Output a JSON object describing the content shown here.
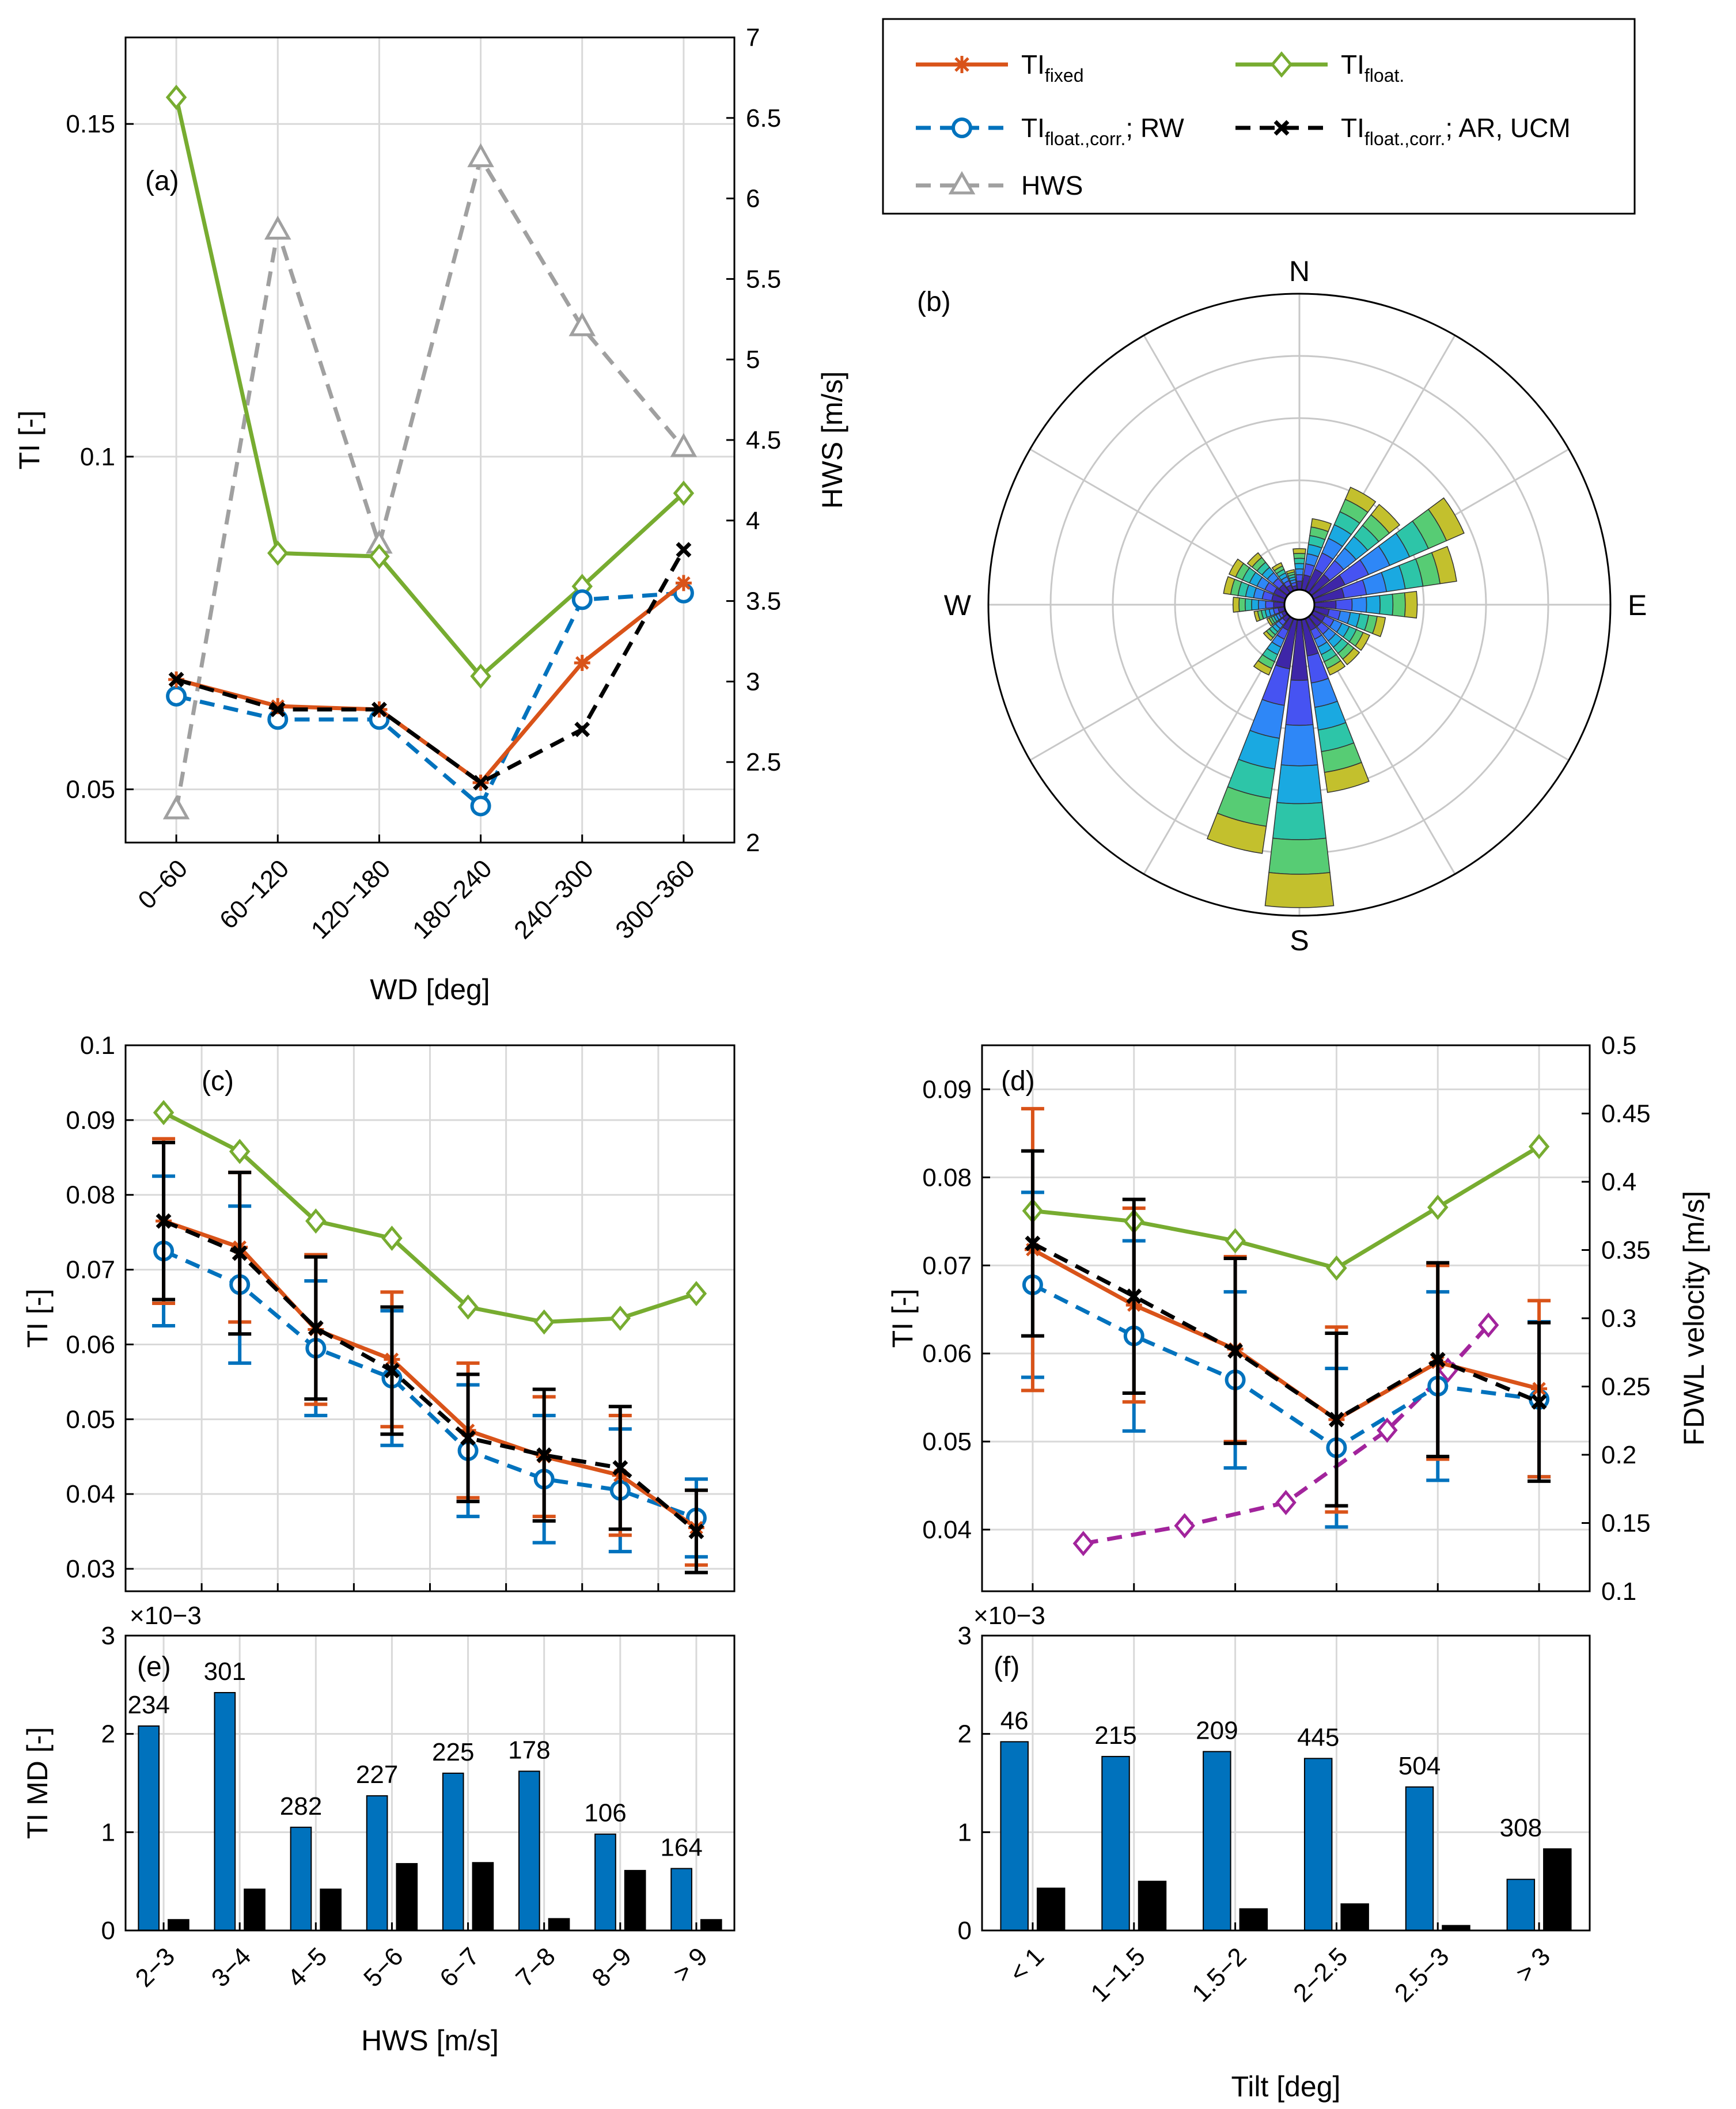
{
  "colors": {
    "ti_fixed": "#d95319",
    "ti_float": "#77ac30",
    "ti_corr_rw": "#0072bd",
    "ti_corr_ar": "#000000",
    "hws": "#a0a0a0",
    "fdwl": "#a2249c",
    "bar_blue": "#0072bd",
    "bar_black": "#000000"
  },
  "legend": {
    "fixed_main": "TI",
    "fixed_sub": "fixed",
    "float_main": "TI",
    "float_sub": "float.",
    "rw_main": "TI",
    "rw_sub": "float.,corr.",
    "rw_suffix": ";  RW",
    "ar_main": "TI",
    "ar_sub": "float.,corr.",
    "ar_suffix": ";  AR, UCM",
    "hws": "HWS"
  },
  "chart_data": [
    {
      "id": "a",
      "panel_label": "(a)",
      "type": "line",
      "categories": [
        "0−60",
        "60−120",
        "120−180",
        "180−240",
        "240−300",
        "300−360"
      ],
      "xlabel": "WD [deg]",
      "ylabel": "TI [-]",
      "ylabel_right": "HWS [m/s]",
      "ylim": [
        0.042,
        0.163
      ],
      "ylim_right": [
        2,
        7
      ],
      "yticks": [
        "0.05",
        "0.1",
        "0.15"
      ],
      "yticks_right": [
        "2",
        "2.5",
        "3",
        "3.5",
        "4",
        "4.5",
        "5",
        "5.5",
        "6",
        "6.5",
        "7"
      ],
      "series": [
        {
          "name": "TI fixed",
          "values": [
            0.0665,
            0.0625,
            0.062,
            0.051,
            0.069,
            0.081
          ]
        },
        {
          "name": "TI float.",
          "values": [
            0.154,
            0.0855,
            0.085,
            0.067,
            0.0805,
            0.0945
          ]
        },
        {
          "name": "TI float.,corr.; RW",
          "values": [
            0.064,
            0.0605,
            0.0605,
            0.0475,
            0.0785,
            0.0795
          ]
        },
        {
          "name": "TI float.,corr.; AR, UCM",
          "values": [
            0.0665,
            0.062,
            0.062,
            0.051,
            0.059,
            0.086
          ]
        },
        {
          "name": "HWS",
          "axis": "right",
          "values": [
            2.2,
            5.8,
            3.85,
            6.25,
            5.2,
            4.45
          ]
        }
      ]
    },
    {
      "id": "b",
      "panel_label": "(b)",
      "type": "polar-rose",
      "directions": [
        "N",
        "E",
        "S",
        "W"
      ],
      "note": "Wind rose of wind direction, stacked by HWS bins",
      "sectors_deg": [
        0,
        15,
        30,
        45,
        60,
        75,
        90,
        105,
        120,
        135,
        150,
        165,
        180,
        195,
        210,
        225,
        240,
        255,
        270,
        285,
        300,
        315,
        330,
        345
      ],
      "frequency": [
        0.2,
        0.35,
        0.55,
        0.55,
        0.8,
        0.7,
        0.5,
        0.35,
        0.3,
        0.3,
        0.3,
        0.85,
        1.4,
        1.15,
        0.3,
        0.15,
        0.1,
        0.15,
        0.25,
        0.3,
        0.3,
        0.25,
        0.15,
        0.1
      ]
    },
    {
      "id": "c",
      "panel_label": "(c)",
      "type": "line",
      "x": [
        2.5,
        3.5,
        4.5,
        5.5,
        6.5,
        7.5,
        8.5,
        9.5
      ],
      "ylabel": "TI [-]",
      "ylim": [
        0.027,
        0.1
      ],
      "yticks": [
        "0.03",
        "0.04",
        "0.05",
        "0.06",
        "0.07",
        "0.08",
        "0.09",
        "0.1"
      ],
      "series": [
        {
          "name": "TI fixed",
          "values": [
            0.0765,
            0.073,
            0.062,
            0.058,
            0.0485,
            0.045,
            0.0425,
            0.0355
          ],
          "err": [
            0.011,
            0.01,
            0.01,
            0.009,
            0.009,
            0.008,
            0.008,
            0.005
          ]
        },
        {
          "name": "TI float.",
          "values": [
            0.091,
            0.0858,
            0.0765,
            0.0742,
            0.065,
            0.063,
            0.0635,
            0.0668
          ]
        },
        {
          "name": "TI float.,corr.; RW",
          "values": [
            0.0725,
            0.068,
            0.0595,
            0.0555,
            0.0458,
            0.042,
            0.0405,
            0.0368
          ],
          "err": [
            0.01,
            0.0105,
            0.009,
            0.009,
            0.0088,
            0.0085,
            0.0082,
            0.0052
          ]
        },
        {
          "name": "TI float.,corr.; AR, UCM",
          "values": [
            0.0765,
            0.0722,
            0.0622,
            0.0565,
            0.0475,
            0.0452,
            0.0435,
            0.035
          ],
          "err": [
            0.0105,
            0.0108,
            0.0095,
            0.0085,
            0.0085,
            0.0088,
            0.0082,
            0.0055
          ]
        }
      ]
    },
    {
      "id": "d",
      "panel_label": "(d)",
      "type": "line",
      "x": [
        0.75,
        1.25,
        1.75,
        2.25,
        2.75,
        3.25
      ],
      "ylabel": "TI [-]",
      "ylabel_right": "FDWL velocity [m/s]",
      "ylim": [
        0.033,
        0.095
      ],
      "ylim_right": [
        0.1,
        0.5
      ],
      "yticks": [
        "0.04",
        "0.05",
        "0.06",
        "0.07",
        "0.08",
        "0.09"
      ],
      "yticks_right": [
        "0.1",
        "0.15",
        "0.2",
        "0.25",
        "0.3",
        "0.35",
        "0.4",
        "0.45",
        "0.5"
      ],
      "series": [
        {
          "name": "TI fixed",
          "values": [
            0.0718,
            0.0655,
            0.0605,
            0.0525,
            0.059,
            0.056
          ],
          "err": [
            0.016,
            0.011,
            0.0105,
            0.0105,
            0.011,
            0.01
          ]
        },
        {
          "name": "TI float.",
          "values": [
            0.0762,
            0.075,
            0.0728,
            0.0697,
            0.0766,
            0.0835
          ]
        },
        {
          "name": "TI float.,corr.; RW",
          "values": [
            0.0678,
            0.062,
            0.057,
            0.0493,
            0.0563,
            0.0548
          ],
          "err": [
            0.0105,
            0.0108,
            0.01,
            0.009,
            0.0107,
            0.0088
          ]
        },
        {
          "name": "TI float.,corr.; AR, UCM",
          "values": [
            0.0725,
            0.0665,
            0.0603,
            0.0525,
            0.0593,
            0.0545
          ],
          "err": [
            0.0105,
            0.011,
            0.0105,
            0.0098,
            0.011,
            0.009
          ]
        },
        {
          "name": "FDWL velocity",
          "axis": "right",
          "x": [
            1.0,
            1.5,
            2.0,
            2.5,
            2.8,
            3.0,
            3.2
          ],
          "values": [
            0.135,
            0.148,
            0.165,
            0.218,
            0.262,
            0.295,
            0.0
          ]
        }
      ]
    },
    {
      "id": "e",
      "panel_label": "(e)",
      "type": "bar",
      "categories": [
        "2−3",
        "3−4",
        "4−5",
        "5−6",
        "6−7",
        "7−8",
        "8−9",
        "> 9"
      ],
      "xlabel": "HWS [m/s]",
      "ylabel": "TI MD [-]",
      "yexp": "×10−3",
      "ylim": [
        0,
        3
      ],
      "yticks": [
        "0",
        "1",
        "2",
        "3"
      ],
      "series": [
        {
          "name": "blue",
          "values": [
            2.08,
            2.42,
            1.05,
            1.37,
            1.6,
            1.62,
            0.98,
            0.63
          ]
        },
        {
          "name": "black",
          "values": [
            0.11,
            0.42,
            0.42,
            0.68,
            0.69,
            0.12,
            0.61,
            0.11
          ]
        }
      ],
      "counts": [
        "234",
        "301",
        "282",
        "227",
        "225",
        "178",
        "106",
        "164"
      ]
    },
    {
      "id": "f",
      "panel_label": "(f)",
      "type": "bar",
      "categories": [
        "< 1",
        "1−1.5",
        "1.5−2",
        "2−2.5",
        "2.5−3",
        "> 3"
      ],
      "xlabel": "Tilt [deg]",
      "yexp": "×10−3",
      "ylim": [
        0,
        3
      ],
      "yticks": [
        "0",
        "1",
        "2",
        "3"
      ],
      "series": [
        {
          "name": "blue",
          "values": [
            1.92,
            1.77,
            1.82,
            1.75,
            1.46,
            0.52
          ]
        },
        {
          "name": "black",
          "values": [
            0.43,
            0.5,
            0.22,
            0.27,
            0.05,
            0.83
          ]
        }
      ],
      "counts": [
        "46",
        "215",
        "209",
        "445",
        "504",
        "308"
      ]
    }
  ]
}
